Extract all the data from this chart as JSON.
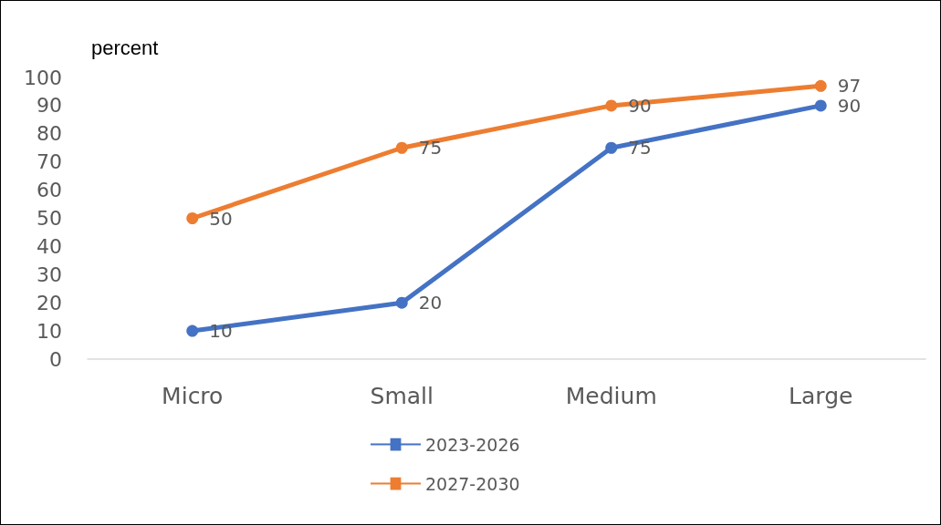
{
  "chart_data": {
    "type": "line",
    "ylabel": "percent",
    "categories": [
      "Micro",
      "Small",
      "Medium",
      "Large"
    ],
    "series": [
      {
        "name": "2023-2026",
        "color": "#4472c4",
        "values": [
          10,
          20,
          75,
          90
        ]
      },
      {
        "name": "2027-2030",
        "color": "#ed7d31",
        "values": [
          50,
          75,
          90,
          97
        ]
      }
    ],
    "ylim": [
      0,
      100
    ],
    "yticks": [
      0,
      10,
      20,
      30,
      40,
      50,
      60,
      70,
      80,
      90,
      100
    ],
    "grid": false,
    "legend": "bottom",
    "marker": "circle",
    "line_style": "solid",
    "data_labels": true
  }
}
